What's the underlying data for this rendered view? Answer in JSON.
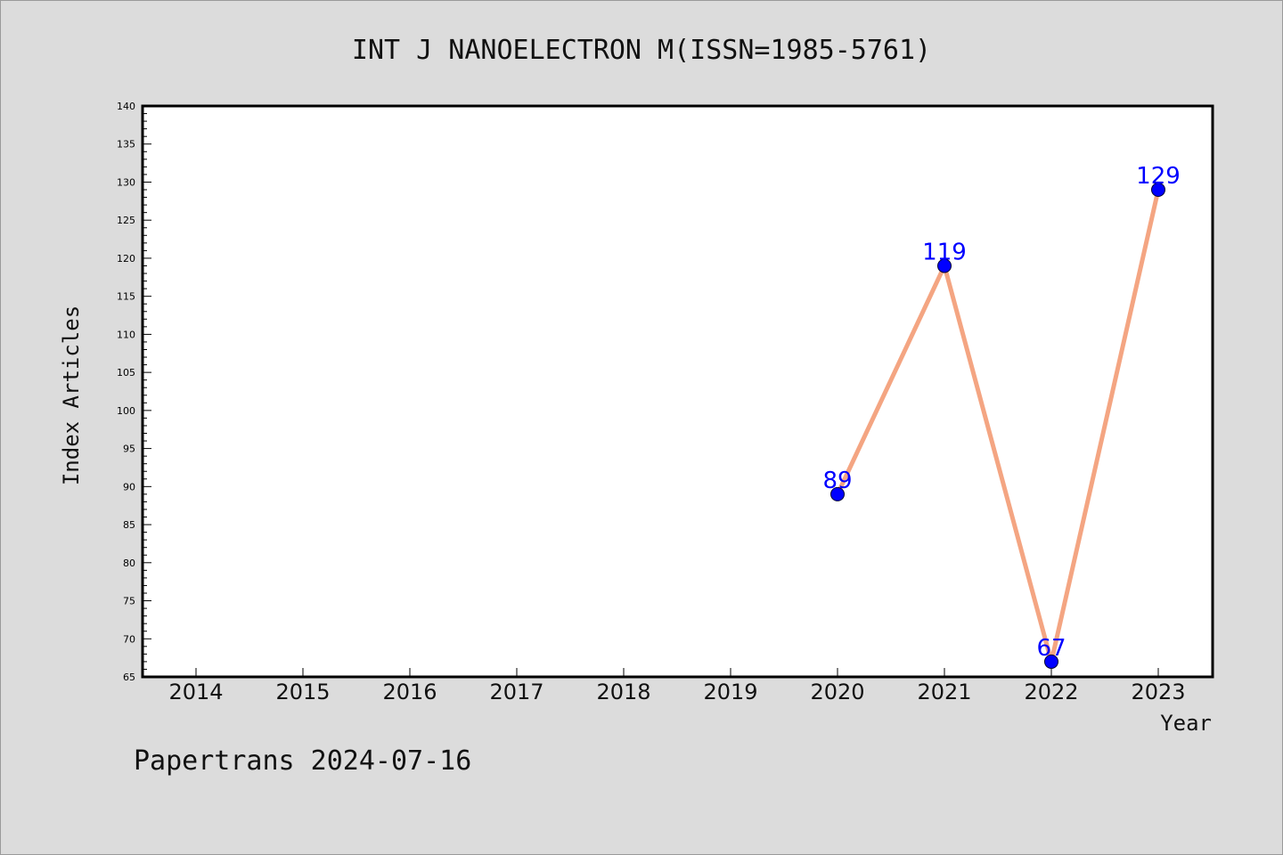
{
  "chart_data": {
    "type": "line",
    "title": "INT J NANOELECTRON M(ISSN=1985-5761)",
    "xlabel": "Year",
    "ylabel": "Index Articles",
    "categories": [
      "2014",
      "2015",
      "2016",
      "2017",
      "2018",
      "2019",
      "2020",
      "2021",
      "2022",
      "2023"
    ],
    "series": [
      {
        "x": [
          "2020",
          "2021",
          "2022",
          "2023"
        ],
        "values": [
          89,
          119,
          67,
          129
        ]
      }
    ],
    "ylim": [
      65,
      140
    ],
    "yticks": [
      65,
      70,
      75,
      80,
      85,
      90,
      95,
      100,
      105,
      110,
      115,
      120,
      125,
      130,
      135,
      140
    ],
    "grid": false,
    "colors": {
      "line": "#f4a582",
      "marker": "#0000ff",
      "label": "#0000ff",
      "background": "#dcdcdc",
      "plot_background": "#ffffff"
    }
  },
  "footer": "Papertrans 2024-07-16"
}
